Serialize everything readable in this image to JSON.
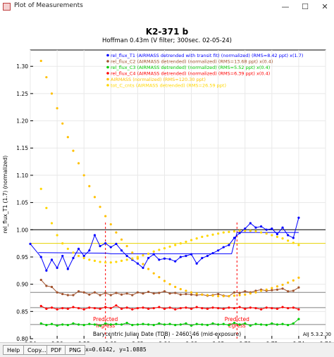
{
  "window": {
    "title": "Plot of Measurements",
    "minimize_glyph": "—",
    "maximize_glyph": "☐",
    "close_glyph": "✕"
  },
  "bottom_bar": {
    "help_label": "Help",
    "copy_label": "Copy...",
    "pdf_label": "PDF",
    "png_label": "PNG",
    "cursor_readout": "x=0.6142, y=1.0885"
  },
  "plot": {
    "title": "K2-371 b",
    "subtitle": "Hoffman 0.43m (V filter; 300sec. 02-05-24)",
    "xlabel": "Barycentric Julian Date (TDB) - 2460346 (mid-exposure)",
    "ylabel": "rel_flux_T1 (1.7) (normalized)",
    "version": "AIJ 5.3.2.00",
    "markers": [
      {
        "label": "Predicted\nIngress",
        "value_label": "0.596",
        "x": 0.596
      },
      {
        "label": "Predicted\nEgress",
        "value_label": "0.694",
        "x": 0.694
      }
    ]
  },
  "chart_data": {
    "type": "scatter",
    "xlim": [
      0.54,
      0.76
    ],
    "ylim": [
      0.8,
      1.33
    ],
    "grid": true,
    "legend_position": "top-right",
    "x_ticks": [
      "0.54",
      "0.56",
      "0.58",
      "0.60",
      "0.62",
      "0.64",
      "0.66",
      "0.68",
      "0.70",
      "0.72",
      "0.74",
      "0.76"
    ],
    "y_ticks": [
      "0.80",
      "0.85",
      "0.90",
      "0.95",
      "1.00",
      "1.05",
      "1.10",
      "1.15",
      "1.20",
      "1.25",
      "1.30"
    ],
    "legend": [
      {
        "text": "rel_flux_T1 (AIRMASS detrended with transit fit) (normalized) (RMS=8.42 ppt) x(1.7)",
        "color": "#0000ff"
      },
      {
        "text": "rel_flux_C2 (AIRMASS detrended) (normalized) (RMS=13.68 ppt) x(0.4)",
        "color": "#a0522d"
      },
      {
        "text": "rel_flux_C3 (AIRMASS detrended) (normalized) (RMS=5.52 ppt) x(0.4)",
        "color": "#00cc00"
      },
      {
        "text": "rel_flux_C4 (AIRMASS detrended) (normalized) (RMS=6.39 ppt) x(0.4)",
        "color": "#ff0000"
      },
      {
        "text": "AIRMASS (normalized) (RMS=120.30 ppt)",
        "color": "#ffc000"
      },
      {
        "text": "tot_C_cnts (AIRMASS detrended) (RMS=26.59 ppt)",
        "color": "#ffd700"
      }
    ],
    "series": [
      {
        "name": "rel_flux_T1",
        "color": "#0000ff",
        "style": "line-points",
        "x": [
          0.54,
          0.548,
          0.552,
          0.556,
          0.56,
          0.564,
          0.568,
          0.572,
          0.576,
          0.58,
          0.584,
          0.588,
          0.592,
          0.596,
          0.6,
          0.604,
          0.608,
          0.612,
          0.616,
          0.62,
          0.624,
          0.628,
          0.632,
          0.636,
          0.64,
          0.644,
          0.648,
          0.652,
          0.656,
          0.66,
          0.664,
          0.668,
          0.672,
          0.676,
          0.68,
          0.684,
          0.688,
          0.692,
          0.696,
          0.7,
          0.704,
          0.708,
          0.712,
          0.716,
          0.72,
          0.724,
          0.728,
          0.732,
          0.736,
          0.74
        ],
        "y": [
          0.974,
          0.95,
          0.925,
          0.945,
          0.93,
          0.952,
          0.928,
          0.948,
          0.965,
          0.952,
          0.962,
          0.99,
          0.97,
          0.975,
          0.968,
          0.974,
          0.962,
          0.952,
          0.945,
          0.938,
          0.93,
          0.948,
          0.955,
          0.945,
          0.947,
          0.946,
          0.942,
          0.95,
          0.952,
          0.955,
          0.938,
          0.948,
          0.952,
          0.957,
          0.962,
          0.968,
          0.972,
          0.985,
          0.994,
          1.002,
          1.012,
          1.004,
          1.006,
          1.0,
          1.002,
          0.992,
          1.004,
          0.99,
          0.985,
          1.022
        ]
      },
      {
        "name": "T1 transit model",
        "color": "#0000ff",
        "style": "line",
        "x": [
          0.546,
          0.596,
          0.6,
          0.69,
          0.694,
          0.74
        ],
        "y": [
          0.958,
          0.957,
          0.956,
          0.956,
          0.995,
          0.995
        ]
      },
      {
        "name": "rel_flux_C2",
        "color": "#a0522d",
        "style": "line-points",
        "x": [
          0.548,
          0.552,
          0.556,
          0.56,
          0.564,
          0.568,
          0.572,
          0.576,
          0.58,
          0.584,
          0.588,
          0.592,
          0.596,
          0.6,
          0.604,
          0.608,
          0.612,
          0.616,
          0.62,
          0.624,
          0.628,
          0.632,
          0.636,
          0.64,
          0.644,
          0.648,
          0.652,
          0.656,
          0.66,
          0.664,
          0.668,
          0.672,
          0.676,
          0.68,
          0.684,
          0.688,
          0.692,
          0.696,
          0.7,
          0.704,
          0.708,
          0.712,
          0.716,
          0.72,
          0.724,
          0.728,
          0.732,
          0.736,
          0.74
        ],
        "y": [
          0.908,
          0.897,
          0.895,
          0.885,
          0.882,
          0.88,
          0.88,
          0.887,
          0.885,
          0.881,
          0.885,
          0.88,
          0.884,
          0.88,
          0.884,
          0.881,
          0.883,
          0.88,
          0.885,
          0.883,
          0.886,
          0.883,
          0.884,
          0.887,
          0.883,
          0.884,
          0.881,
          0.882,
          0.881,
          0.88,
          0.881,
          0.879,
          0.88,
          0.882,
          0.879,
          0.878,
          0.885,
          0.884,
          0.887,
          0.885,
          0.888,
          0.89,
          0.888,
          0.889,
          0.89,
          0.892,
          0.887,
          0.888,
          0.894
        ]
      },
      {
        "name": "rel_flux_C3",
        "color": "#00cc00",
        "style": "line-points",
        "x": [
          0.548,
          0.552,
          0.556,
          0.56,
          0.564,
          0.568,
          0.572,
          0.576,
          0.58,
          0.584,
          0.588,
          0.592,
          0.596,
          0.6,
          0.604,
          0.608,
          0.612,
          0.616,
          0.62,
          0.624,
          0.628,
          0.632,
          0.636,
          0.64,
          0.644,
          0.648,
          0.652,
          0.656,
          0.66,
          0.664,
          0.668,
          0.672,
          0.676,
          0.68,
          0.684,
          0.688,
          0.692,
          0.696,
          0.7,
          0.704,
          0.708,
          0.712,
          0.716,
          0.72,
          0.724,
          0.728,
          0.732,
          0.736,
          0.74
        ],
        "y": [
          0.828,
          0.825,
          0.827,
          0.824,
          0.826,
          0.825,
          0.828,
          0.826,
          0.825,
          0.827,
          0.826,
          0.824,
          0.828,
          0.826,
          0.827,
          0.826,
          0.829,
          0.825,
          0.826,
          0.827,
          0.826,
          0.825,
          0.828,
          0.826,
          0.827,
          0.825,
          0.826,
          0.828,
          0.824,
          0.827,
          0.826,
          0.825,
          0.828,
          0.826,
          0.827,
          0.825,
          0.829,
          0.826,
          0.828,
          0.824,
          0.827,
          0.826,
          0.825,
          0.828,
          0.826,
          0.827,
          0.825,
          0.828,
          0.836
        ]
      },
      {
        "name": "rel_flux_C4",
        "color": "#ff0000",
        "style": "line-points",
        "x": [
          0.548,
          0.552,
          0.556,
          0.56,
          0.564,
          0.568,
          0.572,
          0.576,
          0.58,
          0.584,
          0.588,
          0.592,
          0.596,
          0.6,
          0.604,
          0.608,
          0.612,
          0.616,
          0.62,
          0.624,
          0.628,
          0.632,
          0.636,
          0.64,
          0.644,
          0.648,
          0.652,
          0.656,
          0.66,
          0.664,
          0.668,
          0.672,
          0.676,
          0.68,
          0.684,
          0.688,
          0.692,
          0.696,
          0.7,
          0.704,
          0.708,
          0.712,
          0.716,
          0.72,
          0.724,
          0.728,
          0.732,
          0.736,
          0.74
        ],
        "y": [
          0.86,
          0.855,
          0.857,
          0.854,
          0.856,
          0.855,
          0.858,
          0.856,
          0.854,
          0.857,
          0.856,
          0.855,
          0.858,
          0.856,
          0.861,
          0.855,
          0.857,
          0.854,
          0.856,
          0.857,
          0.855,
          0.856,
          0.858,
          0.855,
          0.857,
          0.854,
          0.856,
          0.857,
          0.855,
          0.858,
          0.856,
          0.855,
          0.857,
          0.856,
          0.855,
          0.857,
          0.856,
          0.858,
          0.855,
          0.857,
          0.856,
          0.854,
          0.857,
          0.856,
          0.855,
          0.858,
          0.856,
          0.857,
          0.854
        ]
      },
      {
        "name": "AIRMASS",
        "color": "#ffc000",
        "style": "points",
        "x": [
          0.548,
          0.552,
          0.556,
          0.56,
          0.564,
          0.568,
          0.572,
          0.576,
          0.58,
          0.584,
          0.588,
          0.592,
          0.596,
          0.6,
          0.604,
          0.608,
          0.612,
          0.616,
          0.62,
          0.624,
          0.628,
          0.632,
          0.636,
          0.64,
          0.644,
          0.648,
          0.652,
          0.656,
          0.66,
          0.664,
          0.668,
          0.672,
          0.676,
          0.68,
          0.684,
          0.688,
          0.692,
          0.696,
          0.7,
          0.704,
          0.708,
          0.712,
          0.716,
          0.72,
          0.724,
          0.728,
          0.732,
          0.736,
          0.74
        ],
        "y": [
          1.31,
          1.28,
          1.25,
          1.223,
          1.195,
          1.17,
          1.145,
          1.122,
          1.1,
          1.08,
          1.06,
          1.042,
          1.025,
          1.01,
          0.995,
          0.982,
          0.97,
          0.958,
          0.947,
          0.937,
          0.928,
          0.92,
          0.913,
          0.906,
          0.9,
          0.895,
          0.891,
          0.888,
          0.885,
          0.883,
          0.881,
          0.88,
          0.879,
          0.878,
          0.878,
          0.878,
          0.879,
          0.88,
          0.881,
          0.883,
          0.885,
          0.888,
          0.89,
          0.893,
          0.896,
          0.899,
          0.903,
          0.907,
          0.912
        ]
      },
      {
        "name": "tot_C_cnts",
        "color": "#ffd700",
        "style": "points",
        "x": [
          0.548,
          0.552,
          0.556,
          0.56,
          0.564,
          0.568,
          0.572,
          0.576,
          0.58,
          0.584,
          0.588,
          0.592,
          0.596,
          0.6,
          0.604,
          0.608,
          0.612,
          0.616,
          0.62,
          0.624,
          0.628,
          0.632,
          0.636,
          0.64,
          0.644,
          0.648,
          0.652,
          0.656,
          0.66,
          0.664,
          0.668,
          0.672,
          0.676,
          0.68,
          0.684,
          0.688,
          0.692,
          0.696,
          0.7,
          0.704,
          0.708,
          0.712,
          0.716,
          0.72,
          0.724,
          0.728,
          0.732,
          0.736,
          0.74
        ],
        "y": [
          1.075,
          1.04,
          1.012,
          0.99,
          0.975,
          0.965,
          0.958,
          0.952,
          0.948,
          0.945,
          0.943,
          0.941,
          0.94,
          0.94,
          0.941,
          0.943,
          0.945,
          0.947,
          0.95,
          0.953,
          0.956,
          0.96,
          0.963,
          0.966,
          0.969,
          0.972,
          0.975,
          0.978,
          0.981,
          0.984,
          0.987,
          0.989,
          0.991,
          0.993,
          0.995,
          0.996,
          0.997,
          0.998,
          0.998,
          0.998,
          0.997,
          0.995,
          0.993,
          0.99,
          0.987,
          0.984,
          0.98,
          0.976,
          0.972
        ]
      }
    ],
    "reference_lines": [
      {
        "color": "#000000",
        "y": 1.0
      },
      {
        "color": "#808080",
        "y": 0.885
      },
      {
        "color": "#808080",
        "y": 0.857
      },
      {
        "color": "#808080",
        "y": 0.826
      },
      {
        "color": "#e6d200",
        "y": 0.975
      }
    ]
  }
}
